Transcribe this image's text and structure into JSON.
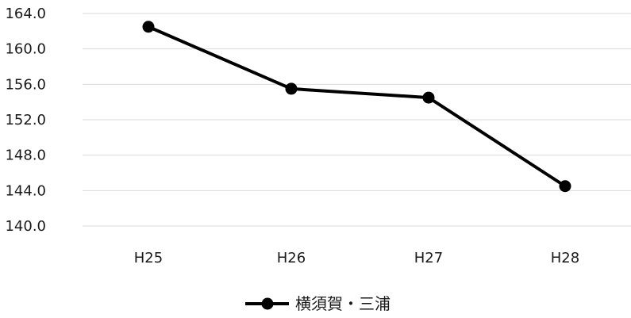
{
  "chart_data": {
    "type": "line",
    "categories": [
      "H25",
      "H26",
      "H27",
      "H28"
    ],
    "series": [
      {
        "name": "横須賀・三浦",
        "values": [
          162.5,
          155.5,
          154.5,
          144.5
        ],
        "color": "#000000"
      }
    ],
    "y_ticks": [
      140.0,
      144.0,
      148.0,
      152.0,
      156.0,
      160.0,
      164.0
    ],
    "ylim": [
      140,
      164
    ],
    "grid": "horizontal",
    "grid_color": "#d9d9d9",
    "legend_position": "bottom",
    "marker": "circle"
  }
}
